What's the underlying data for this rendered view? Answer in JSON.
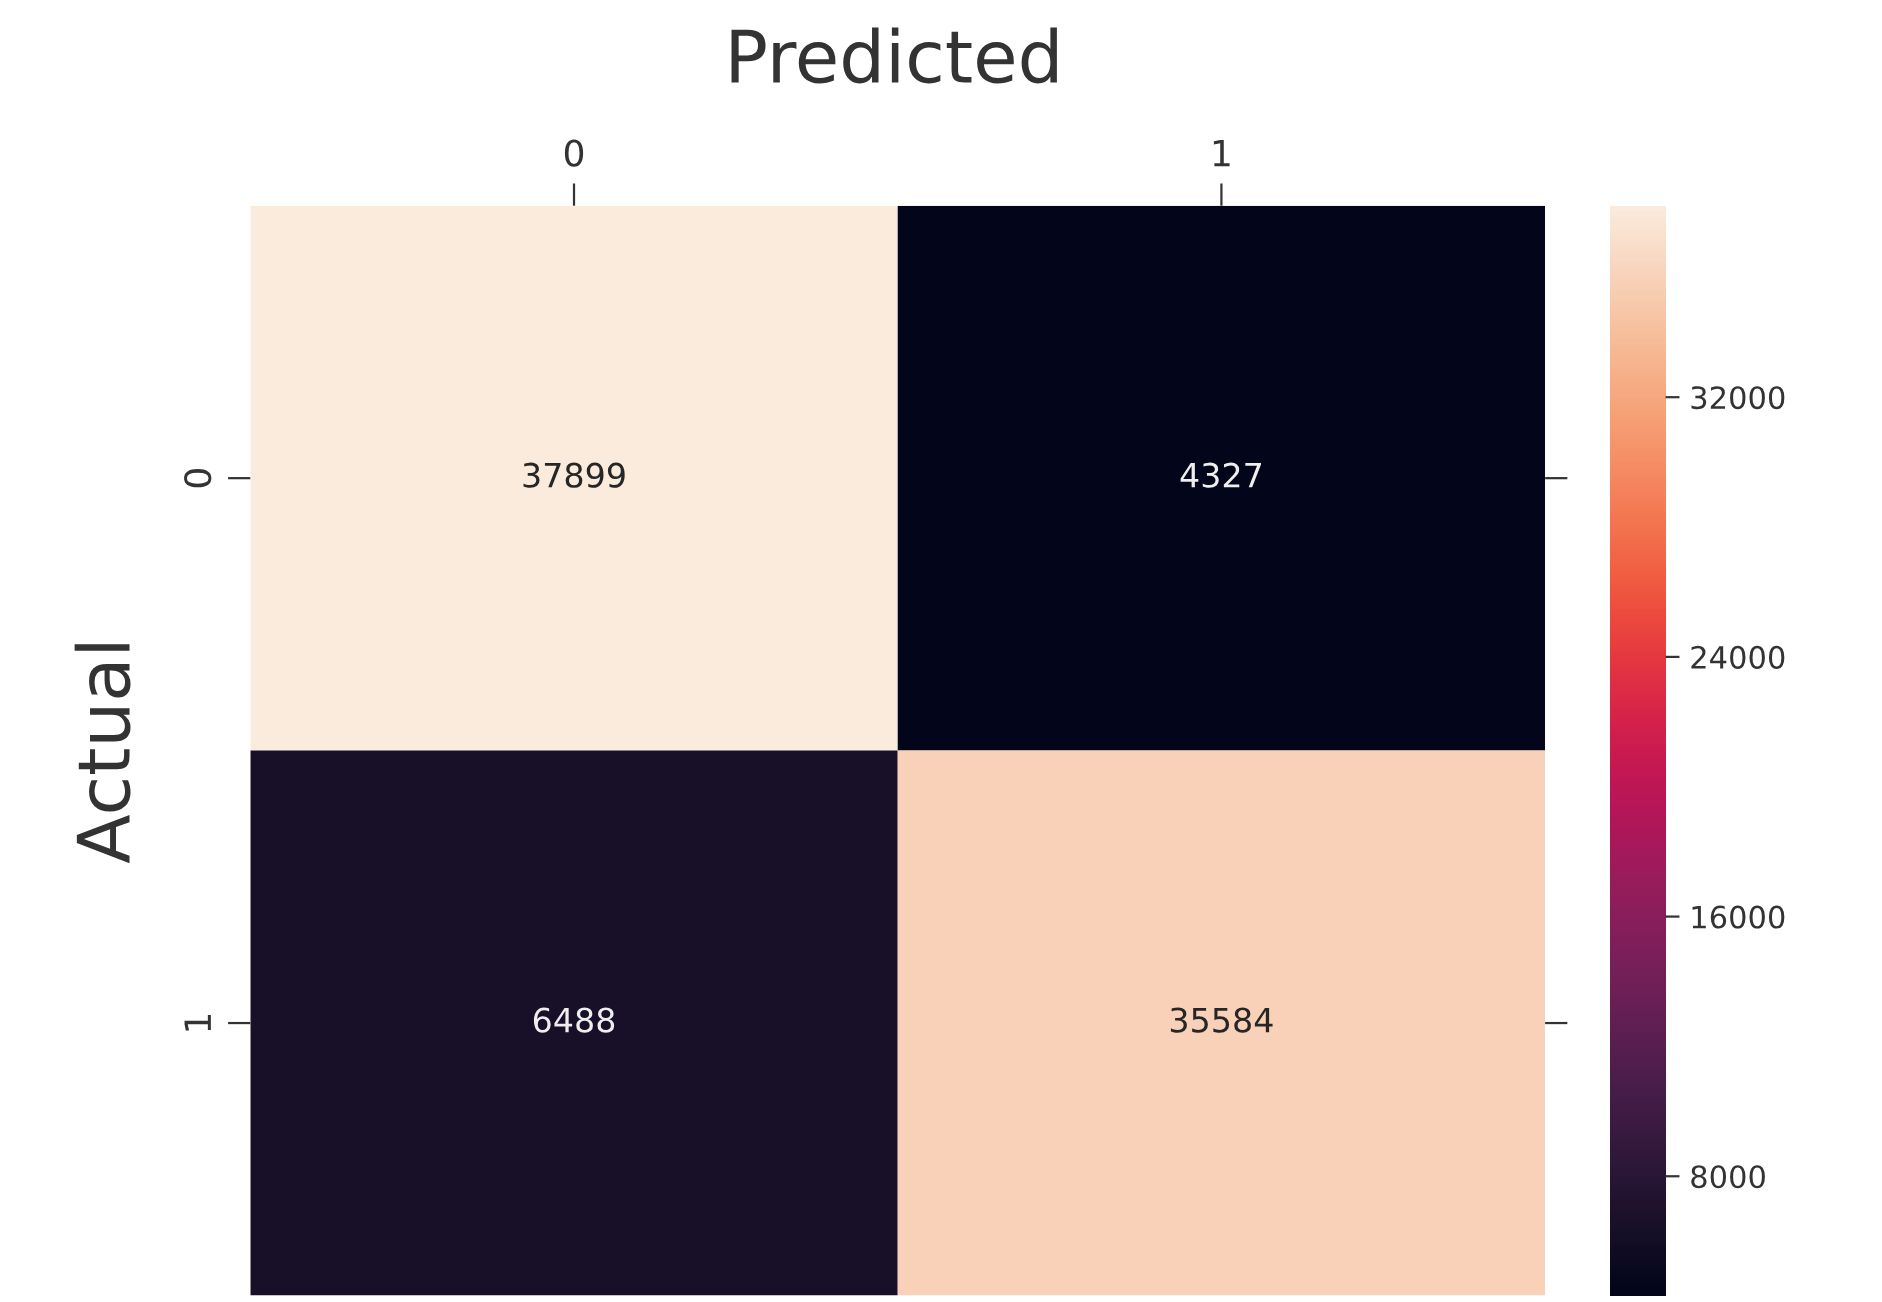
{
  "chart_data": {
    "type": "heatmap",
    "title": "Predicted",
    "ylabel": "Actual",
    "categories": [
      "0",
      "1"
    ],
    "y_categories": [
      "0",
      "1"
    ],
    "cells": [
      [
        37899,
        4327
      ],
      [
        6488,
        35584
      ]
    ],
    "clim": [
      4327,
      37899
    ],
    "cticks": [
      8000,
      16000,
      24000,
      32000
    ],
    "data_labels": true
  }
}
